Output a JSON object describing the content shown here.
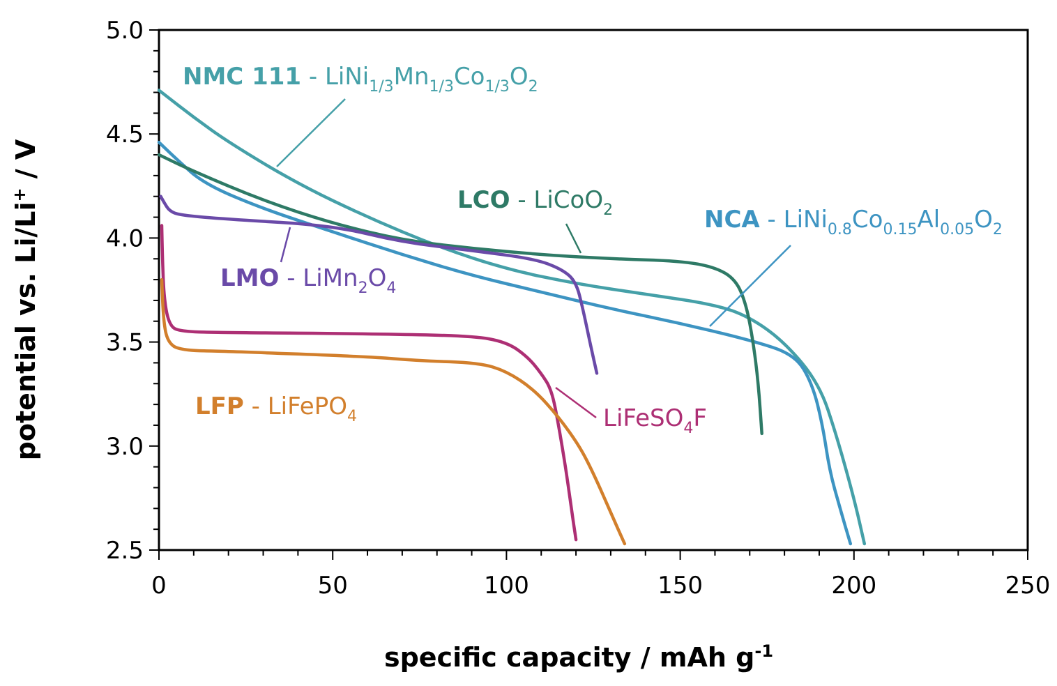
{
  "chart_data": {
    "type": "line",
    "xlabel": "specific capacity / mAh g",
    "xlabel_sup": "-1",
    "ylabel": "potential vs. Li/Li",
    "ylabel_sup": "+",
    "ylabel_unit": " / V",
    "xlim": [
      0,
      250
    ],
    "ylim": [
      2.5,
      5.0
    ],
    "xticks": [
      0,
      50,
      100,
      150,
      200,
      250
    ],
    "yticks": [
      2.5,
      3.0,
      3.5,
      4.0,
      4.5,
      5.0
    ],
    "grid": false,
    "series": [
      {
        "name": "NMC 111",
        "formula": [
          [
            "LiNi",
            ""
          ],
          [
            "1/3",
            "sub"
          ],
          [
            "Mn",
            ""
          ],
          [
            "1/3",
            "sub"
          ],
          [
            "Co",
            ""
          ],
          [
            "1/3",
            "sub"
          ],
          [
            "O",
            ""
          ],
          [
            "2",
            "sub"
          ]
        ],
        "color": "#45a0a8",
        "points": [
          [
            0,
            4.71
          ],
          [
            10,
            4.58
          ],
          [
            20,
            4.46
          ],
          [
            40,
            4.26
          ],
          [
            60,
            4.1
          ],
          [
            80,
            3.96
          ],
          [
            100,
            3.85
          ],
          [
            120,
            3.78
          ],
          [
            140,
            3.73
          ],
          [
            160,
            3.68
          ],
          [
            170,
            3.62
          ],
          [
            180,
            3.5
          ],
          [
            190,
            3.3
          ],
          [
            195,
            3.05
          ],
          [
            200,
            2.75
          ],
          [
            203,
            2.53
          ]
        ]
      },
      {
        "name": "NCA",
        "formula": [
          [
            "LiNi",
            ""
          ],
          [
            "0.8",
            "sub"
          ],
          [
            "Co",
            ""
          ],
          [
            "0.15",
            "sub"
          ],
          [
            "Al",
            ""
          ],
          [
            "0.05",
            "sub"
          ],
          [
            "O",
            ""
          ],
          [
            "2",
            "sub"
          ]
        ],
        "color": "#3d94c2",
        "points": [
          [
            0,
            4.46
          ],
          [
            5,
            4.38
          ],
          [
            13,
            4.26
          ],
          [
            30,
            4.14
          ],
          [
            50,
            4.03
          ],
          [
            70,
            3.92
          ],
          [
            90,
            3.82
          ],
          [
            110,
            3.74
          ],
          [
            130,
            3.66
          ],
          [
            150,
            3.59
          ],
          [
            170,
            3.51
          ],
          [
            183,
            3.44
          ],
          [
            188,
            3.3
          ],
          [
            191,
            3.1
          ],
          [
            193,
            2.88
          ],
          [
            196,
            2.7
          ],
          [
            199,
            2.53
          ]
        ]
      },
      {
        "name": "LCO",
        "formula": [
          [
            "LiCoO",
            ""
          ],
          [
            "2",
            "sub"
          ]
        ],
        "color": "#2e7a66",
        "points": [
          [
            0,
            4.4
          ],
          [
            10,
            4.32
          ],
          [
            30,
            4.18
          ],
          [
            50,
            4.07
          ],
          [
            70,
            3.99
          ],
          [
            90,
            3.95
          ],
          [
            110,
            3.92
          ],
          [
            130,
            3.9
          ],
          [
            150,
            3.89
          ],
          [
            160,
            3.86
          ],
          [
            166,
            3.8
          ],
          [
            169,
            3.68
          ],
          [
            171,
            3.5
          ],
          [
            172.5,
            3.3
          ],
          [
            173.5,
            3.06
          ]
        ]
      },
      {
        "name": "LMO",
        "formula": [
          [
            "LiMn",
            ""
          ],
          [
            "2",
            "sub"
          ],
          [
            "O",
            ""
          ],
          [
            "4",
            "sub"
          ]
        ],
        "color": "#6a4aa8",
        "points": [
          [
            0.5,
            4.2
          ],
          [
            1.5,
            4.17
          ],
          [
            3,
            4.13
          ],
          [
            6,
            4.11
          ],
          [
            20,
            4.09
          ],
          [
            50,
            4.06
          ],
          [
            70,
            3.98
          ],
          [
            90,
            3.94
          ],
          [
            108,
            3.9
          ],
          [
            116,
            3.85
          ],
          [
            120,
            3.79
          ],
          [
            122,
            3.66
          ],
          [
            124,
            3.5
          ],
          [
            126,
            3.35
          ]
        ]
      },
      {
        "name": "",
        "formula": [
          [
            "LiFeSO",
            ""
          ],
          [
            "4",
            "sub"
          ],
          [
            "F",
            ""
          ]
        ],
        "color": "#ad2f74",
        "points": [
          [
            0.8,
            4.06
          ],
          [
            1,
            3.9
          ],
          [
            1.5,
            3.7
          ],
          [
            3,
            3.58
          ],
          [
            6,
            3.55
          ],
          [
            20,
            3.545
          ],
          [
            60,
            3.54
          ],
          [
            90,
            3.53
          ],
          [
            100,
            3.5
          ],
          [
            106,
            3.43
          ],
          [
            110,
            3.35
          ],
          [
            113,
            3.27
          ],
          [
            115,
            3.1
          ],
          [
            117,
            2.9
          ],
          [
            118.5,
            2.72
          ],
          [
            120,
            2.55
          ]
        ]
      },
      {
        "name": "LFP",
        "formula": [
          [
            "LiFePO",
            ""
          ],
          [
            "4",
            "sub"
          ]
        ],
        "color": "#d27f2c",
        "points": [
          [
            0.8,
            3.8
          ],
          [
            1.3,
            3.6
          ],
          [
            2.5,
            3.5
          ],
          [
            6,
            3.46
          ],
          [
            20,
            3.455
          ],
          [
            60,
            3.43
          ],
          [
            75,
            3.41
          ],
          [
            92,
            3.4
          ],
          [
            100,
            3.36
          ],
          [
            108,
            3.27
          ],
          [
            115,
            3.14
          ],
          [
            121,
            3.0
          ],
          [
            125,
            2.87
          ],
          [
            130,
            2.68
          ],
          [
            134,
            2.53
          ]
        ]
      }
    ],
    "annotations": [
      {
        "text": "NMC 111",
        "formula_of": 0,
        "color": "#45a0a8"
      },
      {
        "text": "NCA",
        "formula_of": 1,
        "color": "#3d94c2"
      },
      {
        "text": "LCO",
        "formula_of": 2,
        "color": "#2e7a66"
      },
      {
        "text": "LMO",
        "formula_of": 3,
        "color": "#6a4aa8"
      },
      {
        "text": "",
        "formula_of": 4,
        "color": "#ad2f74"
      },
      {
        "text": "LFP",
        "formula_of": 5,
        "color": "#d27f2c"
      }
    ],
    "separator": " - "
  }
}
